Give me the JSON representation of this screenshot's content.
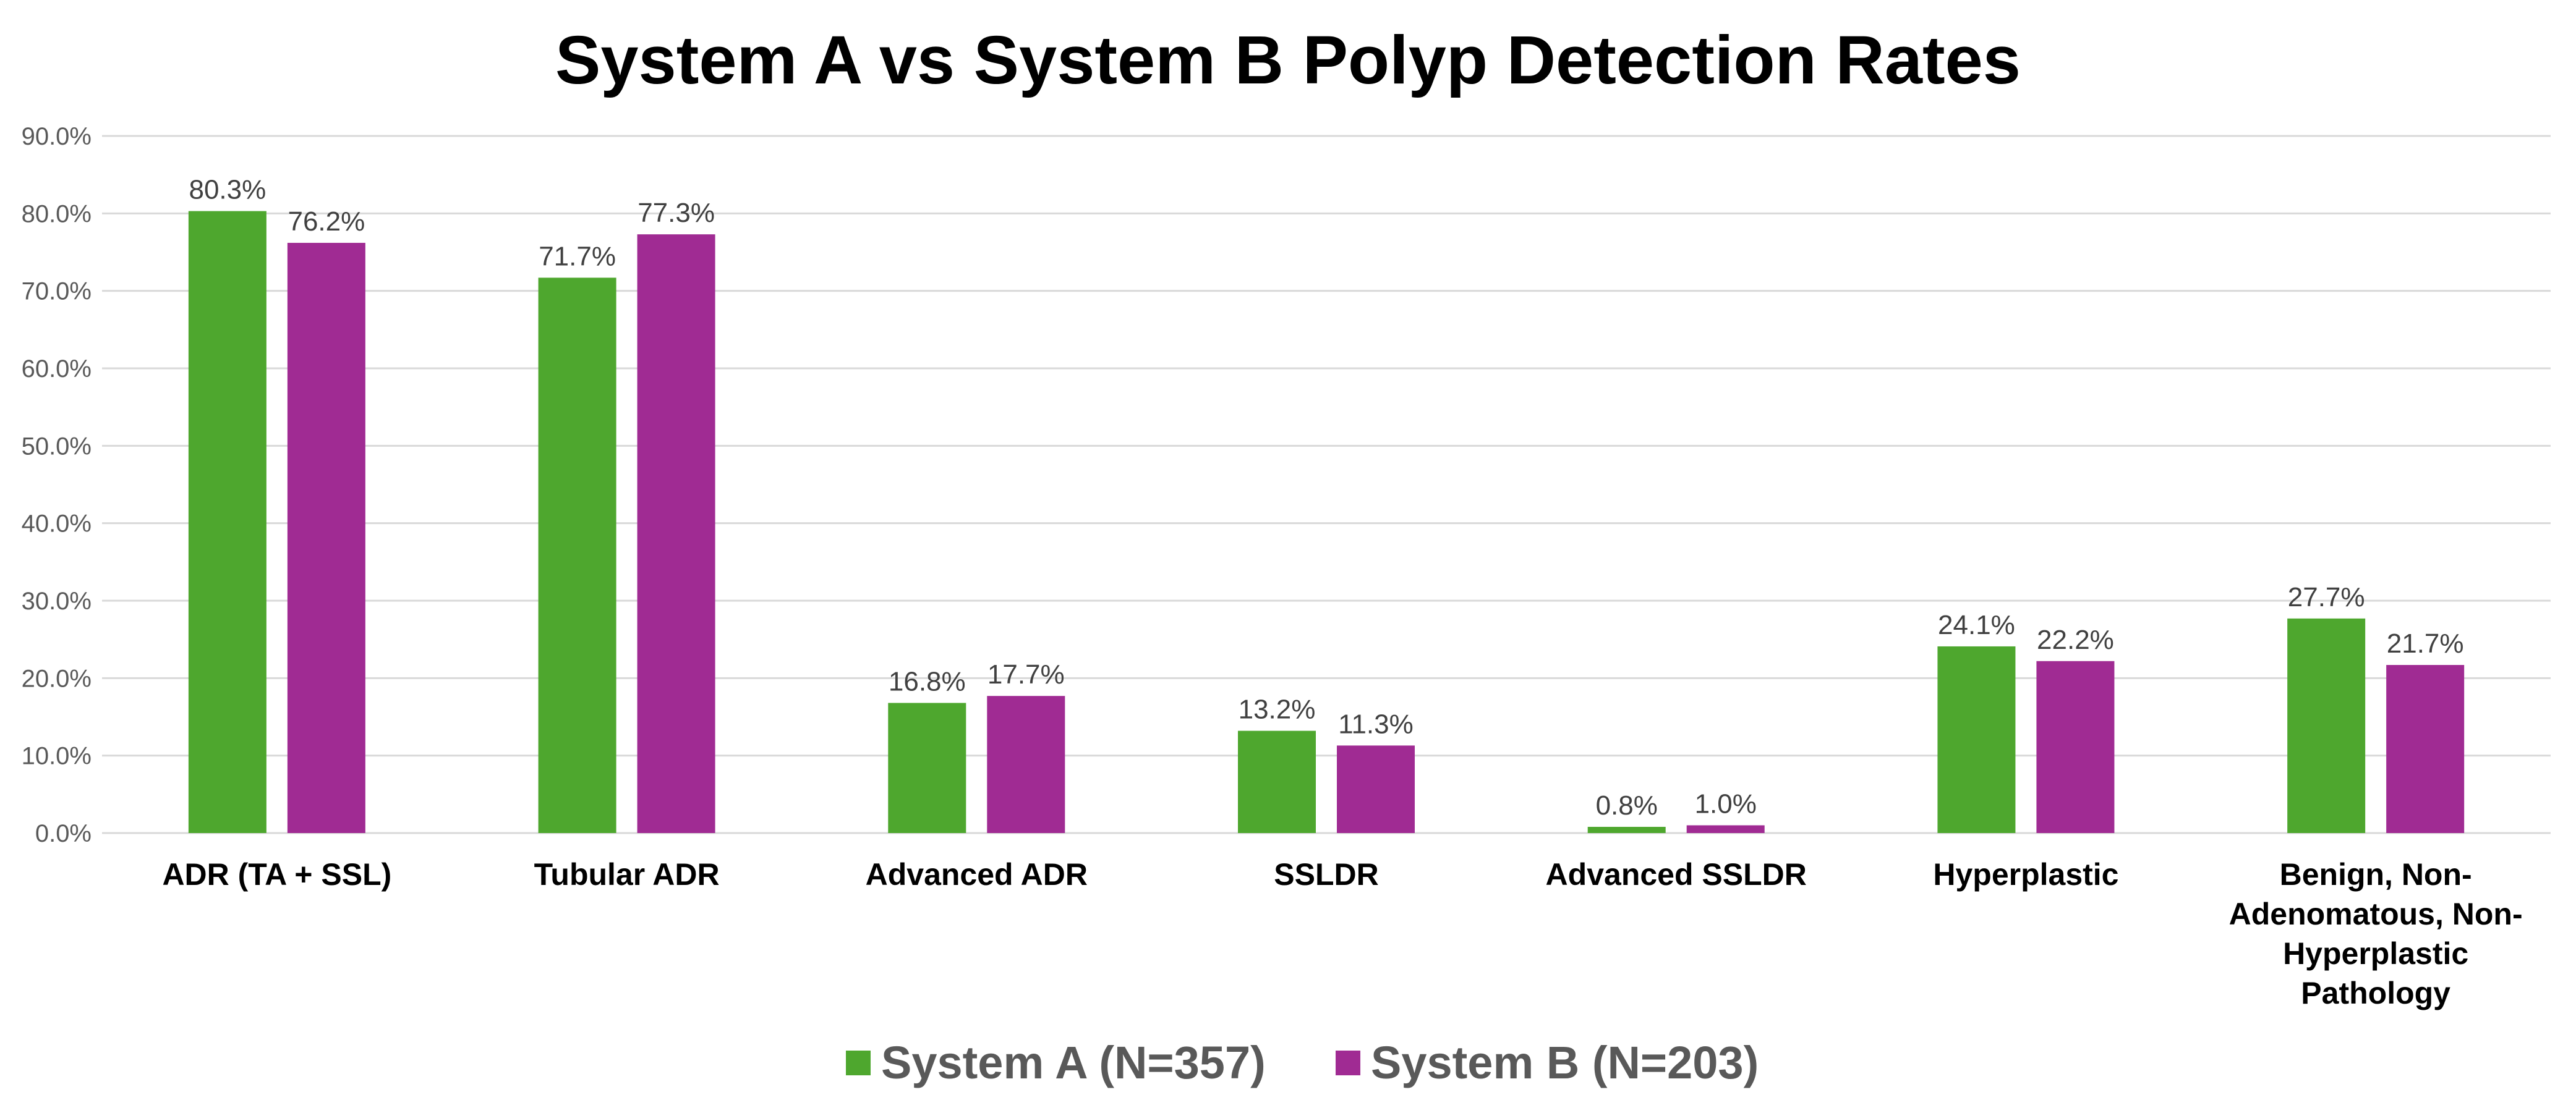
{
  "chart_data": {
    "type": "bar",
    "title": "System A vs System B Polyp Detection Rates",
    "xlabel": "",
    "ylabel": "",
    "ylim": [
      0,
      90
    ],
    "yticks": [
      "0.0%",
      "10.0%",
      "20.0%",
      "30.0%",
      "40.0%",
      "50.0%",
      "60.0%",
      "70.0%",
      "80.0%",
      "90.0%"
    ],
    "grid": true,
    "legend_position": "bottom",
    "categories": [
      [
        "ADR (TA + SSL)"
      ],
      [
        "Tubular ADR"
      ],
      [
        "Advanced ADR"
      ],
      [
        "SSLDR"
      ],
      [
        "Advanced SSLDR"
      ],
      [
        "Hyperplastic"
      ],
      [
        "Benign, Non-",
        "Adenomatous, Non-",
        "Hyperplastic",
        "Pathology"
      ]
    ],
    "series": [
      {
        "name": "System A (N=357)",
        "color": "#4ea72e",
        "values": [
          80.3,
          71.7,
          16.8,
          13.2,
          0.8,
          24.1,
          27.7
        ],
        "labels": [
          "80.3%",
          "71.7%",
          "16.8%",
          "13.2%",
          "0.8%",
          "24.1%",
          "27.7%"
        ]
      },
      {
        "name": "System B (N=203)",
        "color": "#a02b93",
        "values": [
          76.2,
          77.3,
          17.7,
          11.3,
          1.0,
          22.2,
          21.7
        ],
        "labels": [
          "76.2%",
          "77.3%",
          "17.7%",
          "11.3%",
          "1.0%",
          "22.2%",
          "21.7%"
        ]
      }
    ]
  }
}
